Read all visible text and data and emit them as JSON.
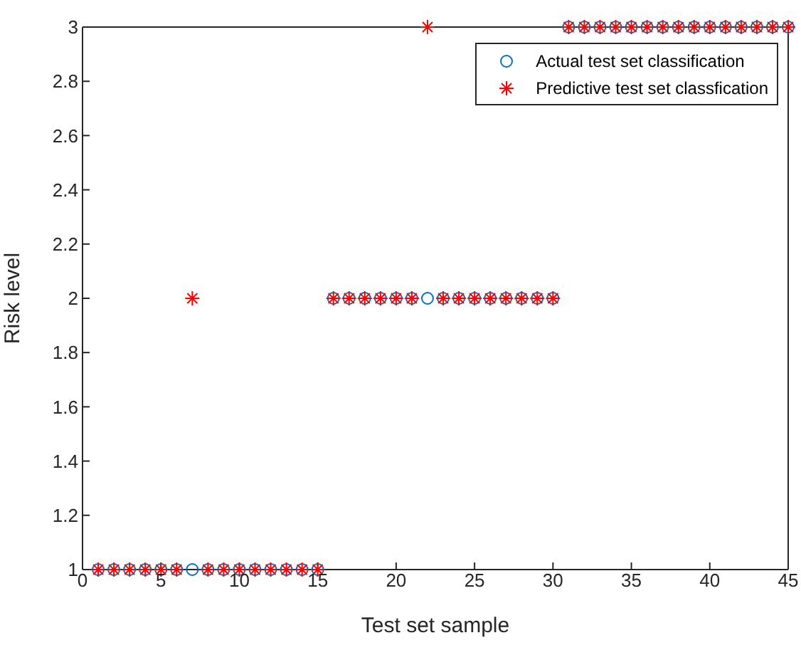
{
  "chart_data": {
    "type": "scatter",
    "xlabel": "Test set sample",
    "ylabel": "Risk level",
    "x": [
      1,
      2,
      3,
      4,
      5,
      6,
      7,
      8,
      9,
      10,
      11,
      12,
      13,
      14,
      15,
      16,
      17,
      18,
      19,
      20,
      21,
      22,
      23,
      24,
      25,
      26,
      27,
      28,
      29,
      30,
      31,
      32,
      33,
      34,
      35,
      36,
      37,
      38,
      39,
      40,
      41,
      42,
      43,
      44,
      45
    ],
    "series": [
      {
        "name": "Actual test set classification",
        "color": "#0072bd",
        "marker": "circle",
        "values": [
          1,
          1,
          1,
          1,
          1,
          1,
          1,
          1,
          1,
          1,
          1,
          1,
          1,
          1,
          1,
          2,
          2,
          2,
          2,
          2,
          2,
          2,
          2,
          2,
          2,
          2,
          2,
          2,
          2,
          2,
          3,
          3,
          3,
          3,
          3,
          3,
          3,
          3,
          3,
          3,
          3,
          3,
          3,
          3,
          3
        ]
      },
      {
        "name": "Predictive test set classfication",
        "color": "#ff0000",
        "marker": "cross",
        "values": [
          1,
          1,
          1,
          1,
          1,
          1,
          2,
          1,
          1,
          1,
          1,
          1,
          1,
          1,
          1,
          2,
          2,
          2,
          2,
          2,
          2,
          3,
          2,
          2,
          2,
          2,
          2,
          2,
          2,
          2,
          3,
          3,
          3,
          3,
          3,
          3,
          3,
          3,
          3,
          3,
          3,
          3,
          3,
          3,
          3
        ]
      }
    ],
    "xlim": [
      0,
      45
    ],
    "xticks": [
      0,
      5,
      10,
      15,
      20,
      25,
      30,
      35,
      40,
      45
    ],
    "ylim": [
      1,
      3
    ],
    "yticks": [
      1,
      1.2,
      1.4,
      1.6,
      1.8,
      2,
      2.2,
      2.4,
      2.6,
      2.8,
      3
    ],
    "grid": false,
    "legend": "top right"
  }
}
